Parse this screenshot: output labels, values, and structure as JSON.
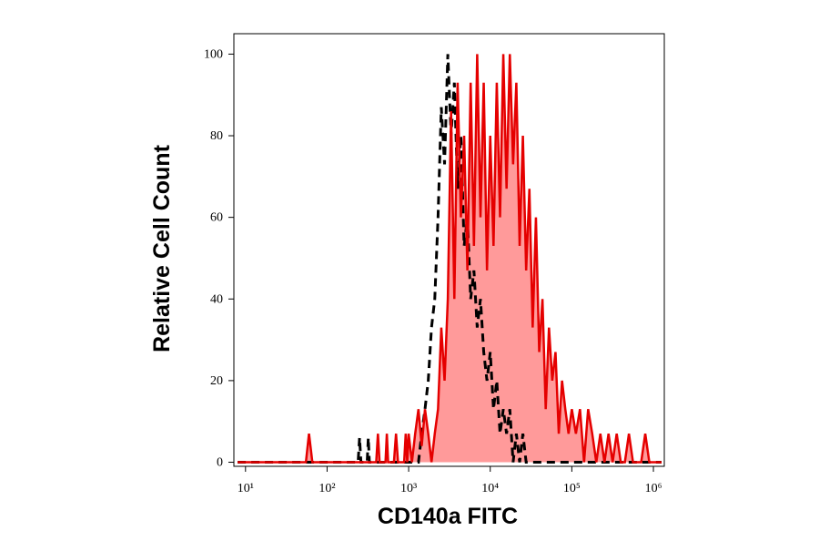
{
  "chart_data": {
    "type": "histogram-overlay",
    "xlabel": "CD140a FITC",
    "ylabel": "Relative Cell Count",
    "xscale": "log",
    "xlim": [
      7.2,
      1360000
    ],
    "ylim": [
      -1,
      105
    ],
    "xticks": [
      {
        "value": 10,
        "label": "10¹"
      },
      {
        "value": 100,
        "label": "10²"
      },
      {
        "value": 1000,
        "label": "10³"
      },
      {
        "value": 10000,
        "label": "10⁴"
      },
      {
        "value": 100000,
        "label": "10⁵"
      },
      {
        "value": 1000000,
        "label": "10⁶"
      }
    ],
    "yticks": [
      0,
      20,
      40,
      60,
      80,
      100
    ],
    "x": [
      8,
      55,
      60,
      66,
      240,
      250,
      260,
      310,
      320,
      330,
      400,
      420,
      440,
      520,
      540,
      560,
      660,
      700,
      740,
      880,
      920,
      960,
      1000,
      1096,
      1202,
      1318,
      1445,
      1585,
      1738,
      1905,
      2089,
      2291,
      2512,
      2754,
      3020,
      3311,
      3631,
      3981,
      4365,
      4786,
      5248,
      5754,
      6310,
      6918,
      7586,
      8318,
      9120,
      10000,
      10965,
      12023,
      13183,
      14454,
      15849,
      17378,
      19055,
      20893,
      22909,
      25119,
      27542,
      30200,
      33113,
      36308,
      39811,
      43652,
      47863,
      52481,
      57544,
      63096,
      69183,
      75858,
      83176,
      91201,
      100000,
      112202,
      125893,
      141254,
      158489,
      177828,
      199526,
      223872,
      251189,
      281838,
      316228,
      354813,
      398107,
      446684,
      501187,
      562341,
      630957,
      707946,
      794328,
      891251,
      1000000,
      1258925
    ],
    "series": [
      {
        "color": "#e50000",
        "fill_color": "#ff9a9a",
        "dashed": false,
        "values": [
          0,
          0,
          7,
          0,
          0,
          0,
          0,
          0,
          0,
          0,
          0,
          7,
          0,
          0,
          7,
          0,
          0,
          7,
          0,
          0,
          7,
          0,
          7,
          0,
          7,
          13,
          4,
          13,
          7,
          0,
          7,
          13,
          33,
          20,
          40,
          86,
          40,
          93,
          60,
          80,
          47,
          93,
          53,
          100,
          60,
          93,
          47,
          80,
          53,
          93,
          60,
          100,
          67,
          100,
          73,
          93,
          53,
          80,
          47,
          67,
          33,
          60,
          27,
          40,
          13,
          33,
          20,
          27,
          7,
          20,
          13,
          7,
          13,
          7,
          13,
          0,
          13,
          7,
          0,
          7,
          0,
          7,
          0,
          7,
          0,
          0,
          7,
          0,
          0,
          0,
          7,
          0,
          0,
          0
        ]
      },
      {
        "color": "#000000",
        "dashed": true,
        "values": [
          0,
          0,
          0,
          0,
          0,
          6,
          0,
          0,
          6,
          0,
          0,
          0,
          0,
          0,
          0,
          0,
          0,
          0,
          0,
          0,
          0,
          0,
          0,
          0,
          0,
          0,
          7,
          13,
          20,
          33,
          40,
          60,
          87,
          73,
          100,
          80,
          93,
          67,
          80,
          53,
          60,
          40,
          47,
          33,
          40,
          27,
          20,
          27,
          13,
          20,
          7,
          13,
          7,
          13,
          0,
          7,
          0,
          7,
          0,
          0,
          0,
          0,
          0,
          0,
          0,
          0,
          0,
          0,
          0,
          0,
          0,
          0,
          0,
          0,
          0,
          0,
          0,
          0,
          0,
          0,
          0,
          0,
          0,
          0,
          0,
          0,
          0,
          0,
          0,
          0,
          0,
          0,
          0,
          0
        ]
      }
    ]
  }
}
